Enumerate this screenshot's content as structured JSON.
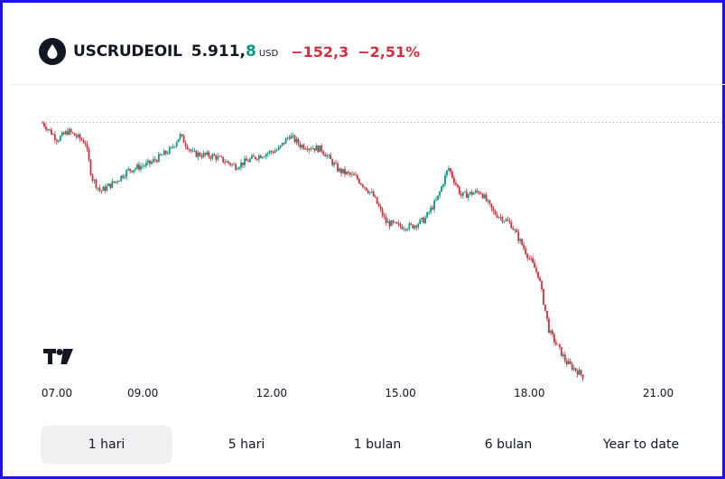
{
  "header": {
    "icon": "oil-drop-icon",
    "symbol": "USCRUDEOIL",
    "price_main": "5.911,",
    "price_last": "8",
    "currency": "USD",
    "change_abs": "−152,3",
    "change_pct": "−2,51%"
  },
  "colors": {
    "up": "#089981",
    "down": "#d0313f",
    "text": "#131722",
    "border": "#1f10e8",
    "active_tab_bg": "#f0f0f2"
  },
  "chart_data": {
    "type": "candlestick",
    "x_unit": "hour",
    "x_ticks": [
      "07.00",
      "09.00",
      "12.00",
      "15.00",
      "18.00",
      "21.00"
    ],
    "x_tick_values": [
      7,
      9,
      12,
      15,
      18,
      21
    ],
    "xlim": [
      7,
      22.7
    ],
    "ylim": [
      5880,
      6080
    ],
    "reference_line": {
      "label": "previous close",
      "value": 6064.1,
      "style": "dotted"
    },
    "anchors": [
      [
        7.0,
        6064
      ],
      [
        7.35,
        6052
      ],
      [
        7.6,
        6058
      ],
      [
        8.0,
        6050
      ],
      [
        8.15,
        6025
      ],
      [
        8.35,
        6015
      ],
      [
        8.7,
        6022
      ],
      [
        9.0,
        6030
      ],
      [
        9.5,
        6035
      ],
      [
        10.0,
        6045
      ],
      [
        10.2,
        6055
      ],
      [
        10.5,
        6042
      ],
      [
        11.0,
        6040
      ],
      [
        11.5,
        6033
      ],
      [
        12.0,
        6040
      ],
      [
        12.5,
        6045
      ],
      [
        12.75,
        6055
      ],
      [
        13.0,
        6048
      ],
      [
        13.5,
        6045
      ],
      [
        13.9,
        6030
      ],
      [
        14.3,
        6025
      ],
      [
        14.7,
        6012
      ],
      [
        15.0,
        5993
      ],
      [
        15.3,
        5990
      ],
      [
        15.6,
        5990
      ],
      [
        15.9,
        5995
      ],
      [
        16.2,
        6010
      ],
      [
        16.45,
        6032
      ],
      [
        16.75,
        6012
      ],
      [
        17.2,
        6015
      ],
      [
        17.5,
        6000
      ],
      [
        17.9,
        5992
      ],
      [
        18.2,
        5975
      ],
      [
        18.55,
        5955
      ],
      [
        18.8,
        5915
      ],
      [
        19.2,
        5893
      ],
      [
        19.6,
        5883
      ]
    ],
    "last_price": 5911.8,
    "change": -152.3,
    "change_pct": -2.51
  },
  "tabs": [
    {
      "label": "1 hari",
      "active": true
    },
    {
      "label": "5 hari",
      "active": false
    },
    {
      "label": "1 bulan",
      "active": false
    },
    {
      "label": "6 bulan",
      "active": false
    },
    {
      "label": "Year to date",
      "active": false
    }
  ]
}
